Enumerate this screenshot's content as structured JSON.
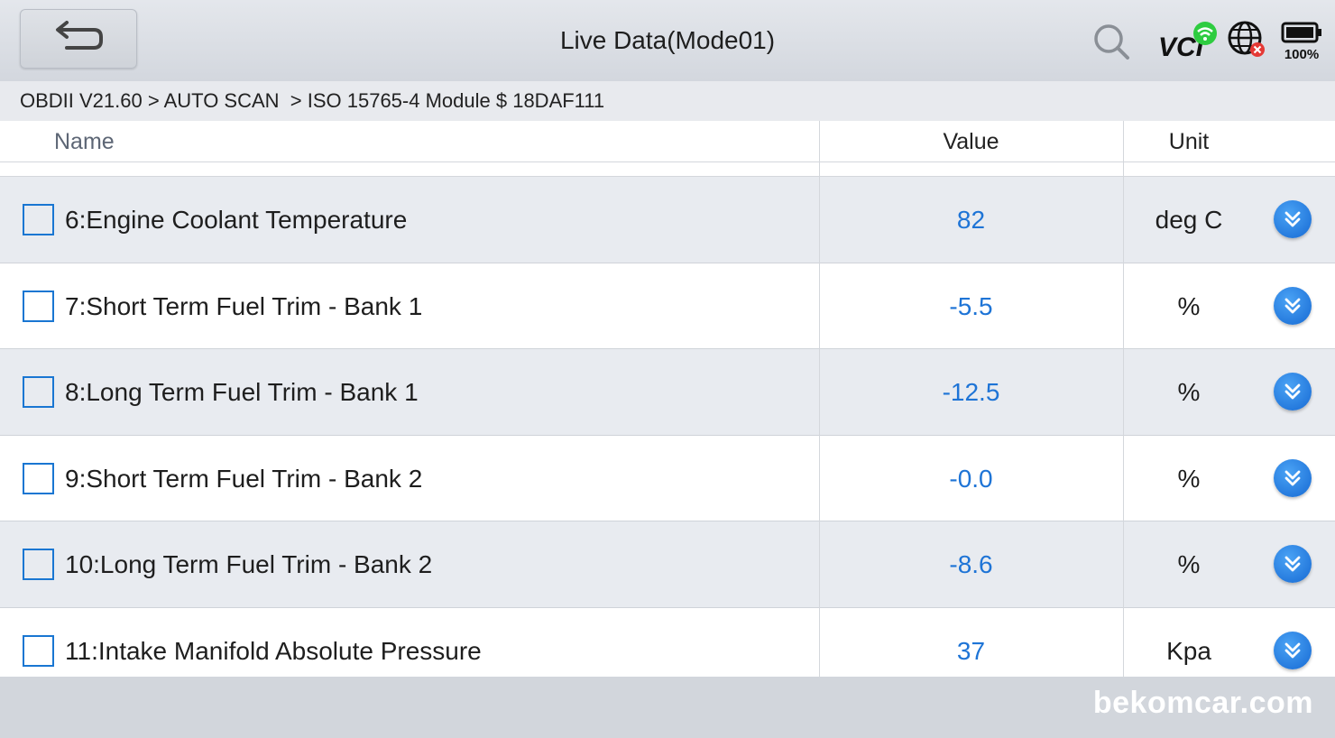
{
  "header": {
    "title": "Live Data(Mode01)",
    "battery_label": "100%",
    "icons": [
      "back-arrow-icon",
      "search-icon",
      "vci-wifi-icon",
      "globe-error-icon",
      "battery-icon"
    ]
  },
  "breadcrumb": "OBDII V21.60 > AUTO SCAN  > ISO 15765-4 Module $ 18DAF111",
  "table": {
    "columns": [
      "Name",
      "Value",
      "Unit"
    ],
    "rows": [
      {
        "name": "6:Engine Coolant Temperature",
        "value": "82",
        "unit": "deg C"
      },
      {
        "name": "7:Short Term Fuel Trim - Bank 1",
        "value": "-5.5",
        "unit": "%"
      },
      {
        "name": "8:Long Term Fuel Trim - Bank 1",
        "value": "-12.5",
        "unit": "%"
      },
      {
        "name": "9:Short Term Fuel Trim - Bank 2",
        "value": "-0.0",
        "unit": "%"
      },
      {
        "name": "10:Long Term Fuel Trim - Bank 2",
        "value": "-8.6",
        "unit": "%"
      },
      {
        "name": "11:Intake Manifold Absolute Pressure",
        "value": "37",
        "unit": "Kpa"
      }
    ]
  },
  "footer": {
    "watermark": "bekomcar.com"
  },
  "colors": {
    "value_text": "#1e74d6",
    "checkbox_border": "#1976d2",
    "expand_button": "#1669d3",
    "row_shaded": "#e8ebf0",
    "vci_wifi": "#2ecc40",
    "globe_error": "#e53935"
  }
}
